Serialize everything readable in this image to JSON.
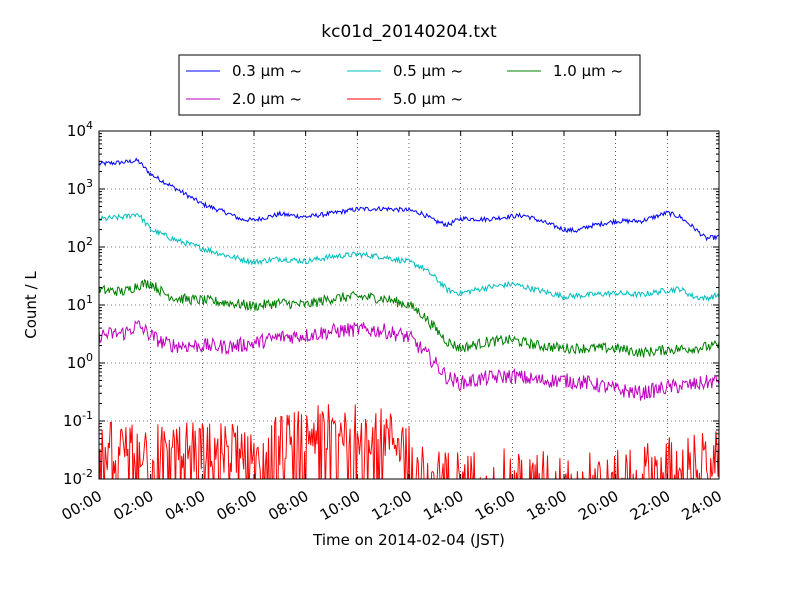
{
  "chart_data": {
    "type": "line",
    "title": "kc01d_20140204.txt",
    "xlabel": "Time on 2014-02-04 (JST)",
    "ylabel": "Count / L",
    "x_ticks": [
      "00:00",
      "02:00",
      "04:00",
      "06:00",
      "08:00",
      "10:00",
      "12:00",
      "14:00",
      "16:00",
      "18:00",
      "20:00",
      "22:00",
      "24:00"
    ],
    "xlim": [
      0,
      24
    ],
    "y_scale": "log",
    "ylim": [
      0.01,
      10000
    ],
    "y_ticks": [
      {
        "base": "10",
        "exp": "-2"
      },
      {
        "base": "10",
        "exp": "-1"
      },
      {
        "base": "10",
        "exp": "0"
      },
      {
        "base": "10",
        "exp": "1"
      },
      {
        "base": "10",
        "exp": "2"
      },
      {
        "base": "10",
        "exp": "3"
      },
      {
        "base": "10",
        "exp": "4"
      }
    ],
    "grid": true,
    "legend_position": "top-center",
    "legend_suffix": " ~",
    "series": [
      {
        "name": "0.3 μm",
        "color": "#0000ff",
        "x": [
          0,
          1,
          1.5,
          2,
          3,
          4,
          5,
          5.5,
          6,
          7,
          8,
          9,
          10,
          11,
          12,
          12.5,
          13,
          13.5,
          14,
          15,
          16,
          16.5,
          17,
          18,
          18.5,
          19,
          20,
          21,
          22,
          22.5,
          23,
          23.5,
          24
        ],
        "y": [
          2700,
          2900,
          3100,
          1800,
          1000,
          550,
          380,
          300,
          290,
          370,
          330,
          380,
          450,
          460,
          430,
          380,
          280,
          240,
          310,
          300,
          340,
          350,
          290,
          200,
          190,
          230,
          280,
          280,
          390,
          330,
          220,
          140,
          150
        ],
        "noise": 0.04
      },
      {
        "name": "0.5 μm",
        "color": "#00bfbf",
        "x": [
          0,
          1,
          1.5,
          2,
          3,
          4,
          5,
          6,
          7,
          8,
          9,
          10,
          11,
          12,
          12.5,
          13,
          13.5,
          14,
          15,
          16,
          17,
          18,
          19,
          20,
          21,
          22,
          22.5,
          23,
          23.5,
          24
        ],
        "y": [
          300,
          330,
          380,
          200,
          130,
          95,
          70,
          55,
          63,
          57,
          68,
          75,
          68,
          55,
          45,
          30,
          18,
          16,
          20,
          23,
          18,
          14,
          15,
          16,
          15,
          18,
          19,
          14,
          13,
          15
        ],
        "noise": 0.05
      },
      {
        "name": "1.0 μm",
        "color": "#008000",
        "x": [
          0,
          1,
          1.5,
          2,
          2.5,
          3,
          4,
          5,
          6,
          7,
          8,
          9,
          10,
          11,
          12,
          12.5,
          13,
          13.5,
          14,
          15,
          16,
          17,
          18,
          19,
          20,
          21,
          22,
          23,
          24
        ],
        "y": [
          18,
          17,
          22,
          24,
          16,
          13,
          12,
          11,
          9.5,
          11,
          10,
          13,
          14,
          13,
          10,
          7,
          4,
          2.3,
          1.8,
          2.3,
          2.5,
          2.0,
          1.8,
          1.8,
          1.8,
          1.5,
          1.7,
          1.8,
          2.0
        ],
        "noise": 0.09
      },
      {
        "name": "2.0 μm",
        "color": "#bf00bf",
        "x": [
          0,
          1,
          1.5,
          2,
          2.5,
          3,
          4,
          5,
          6,
          7,
          8,
          9,
          10,
          11,
          12,
          12.5,
          13,
          13.5,
          14,
          15,
          16,
          17,
          18,
          19,
          20,
          21,
          22,
          23,
          24
        ],
        "y": [
          3.0,
          3.3,
          4.5,
          3.0,
          2.2,
          2.0,
          2.0,
          1.9,
          2.2,
          2.8,
          3.0,
          3.5,
          3.8,
          3.6,
          2.8,
          1.7,
          1.0,
          0.55,
          0.45,
          0.55,
          0.6,
          0.5,
          0.5,
          0.45,
          0.35,
          0.3,
          0.38,
          0.42,
          0.5
        ],
        "noise": 0.13
      },
      {
        "name": "5.0 μm",
        "color": "#ff0000",
        "x": [
          0,
          2,
          4,
          6,
          8,
          9,
          10,
          11,
          12,
          12.5,
          13,
          14,
          16,
          18,
          20,
          22,
          24
        ],
        "y": [
          0.035,
          0.035,
          0.035,
          0.035,
          0.06,
          0.075,
          0.075,
          0.06,
          0.04,
          0.02,
          0.011,
          0.012,
          0.012,
          0.011,
          0.011,
          0.02,
          0.025
        ],
        "noise": 0.3
      }
    ]
  }
}
